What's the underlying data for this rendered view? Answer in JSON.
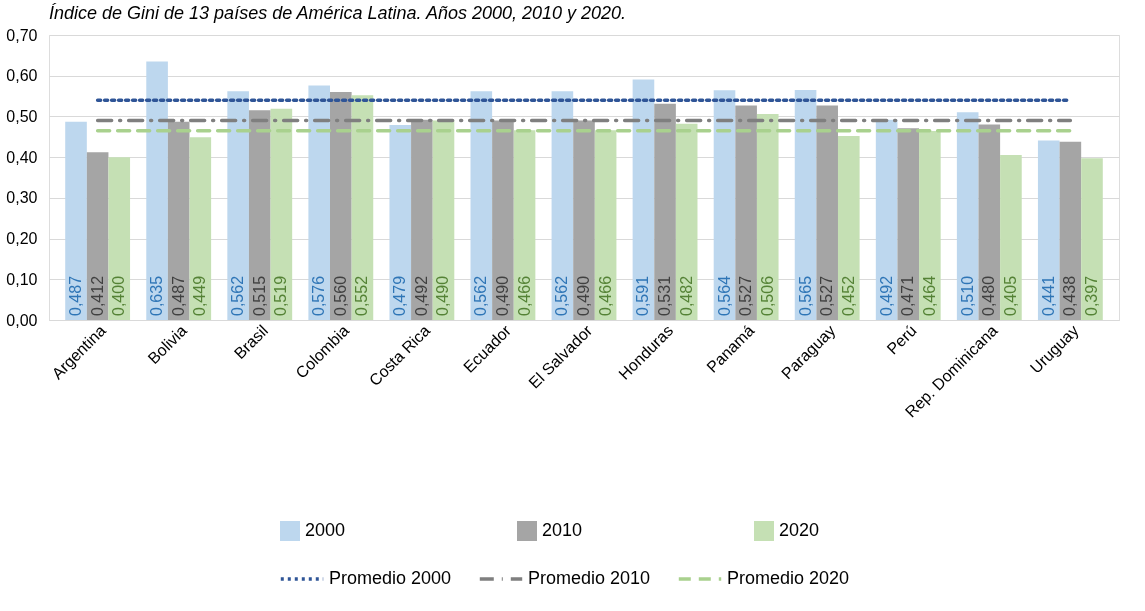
{
  "chart_data": {
    "type": "bar",
    "title": "Índice de Gini de 13 países de América Latina. Años 2000, 2010 y 2020.",
    "categories": [
      "Argentina",
      "Bolivia",
      "Brasil",
      "Colombia",
      "Costa Rica",
      "Ecuador",
      "El Salvador",
      "Honduras",
      "Panamá",
      "Paraguay",
      "Perú",
      "Rep. Dominicana",
      "Uruguay"
    ],
    "series": [
      {
        "name": "2000",
        "color": "#bdd7ee",
        "values": [
          0.487,
          0.635,
          0.562,
          0.576,
          0.479,
          0.562,
          0.562,
          0.591,
          0.564,
          0.565,
          0.492,
          0.51,
          0.441
        ],
        "value_labels": [
          "0,487",
          "0,635",
          "0,562",
          "0,576",
          "0,479",
          "0,562",
          "0,562",
          "0,591",
          "0,564",
          "0,565",
          "0,492",
          "0,510",
          "0,441"
        ]
      },
      {
        "name": "2010",
        "color": "#a5a5a5",
        "values": [
          0.412,
          0.487,
          0.515,
          0.56,
          0.492,
          0.49,
          0.49,
          0.531,
          0.527,
          0.527,
          0.471,
          0.48,
          0.438
        ],
        "value_labels": [
          "0,412",
          "0,487",
          "0,515",
          "0,560",
          "0,492",
          "0,490",
          "0,490",
          "0,531",
          "0,527",
          "0,527",
          "0,471",
          "0,480",
          "0,438"
        ]
      },
      {
        "name": "2020",
        "color": "#c5e0b4",
        "values": [
          0.4,
          0.449,
          0.519,
          0.552,
          0.49,
          0.466,
          0.466,
          0.482,
          0.506,
          0.452,
          0.464,
          0.405,
          0.397
        ],
        "value_labels": [
          "0,400",
          "0,449",
          "0,519",
          "0,552",
          "0,490",
          "0,466",
          "0,466",
          "0,482",
          "0,506",
          "0,452",
          "0,464",
          "0,405",
          "0,397"
        ]
      },
      {
        "name": "Promedio 2000",
        "type": "line",
        "line_style": "dotted",
        "color": "#2f5597",
        "values": [
          0.54,
          0.54,
          0.54,
          0.54,
          0.54,
          0.54,
          0.54,
          0.54,
          0.54,
          0.54,
          0.54,
          0.54,
          0.54
        ]
      },
      {
        "name": "Promedio 2010",
        "type": "line",
        "line_style": "dashdot",
        "color": "#7f7f7f",
        "values": [
          0.49,
          0.49,
          0.49,
          0.49,
          0.49,
          0.49,
          0.49,
          0.49,
          0.49,
          0.49,
          0.49,
          0.49,
          0.49
        ]
      },
      {
        "name": "Promedio 2020",
        "type": "line",
        "line_style": "dashed",
        "color": "#a9d18e",
        "values": [
          0.465,
          0.465,
          0.465,
          0.465,
          0.465,
          0.465,
          0.465,
          0.465,
          0.465,
          0.465,
          0.465,
          0.465,
          0.465
        ]
      }
    ],
    "ylim": [
      0,
      0.7
    ],
    "yticks": [
      {
        "value": 0,
        "label": "0,00"
      },
      {
        "value": 0.1,
        "label": "0,10"
      },
      {
        "value": 0.2,
        "label": "0,20"
      },
      {
        "value": 0.3,
        "label": "0,30"
      },
      {
        "value": 0.4,
        "label": "0,40"
      },
      {
        "value": 0.5,
        "label": "0,50"
      },
      {
        "value": 0.6,
        "label": "0,60"
      },
      {
        "value": 0.7,
        "label": "0,70"
      }
    ],
    "grid": "y",
    "legend": "bottom"
  }
}
